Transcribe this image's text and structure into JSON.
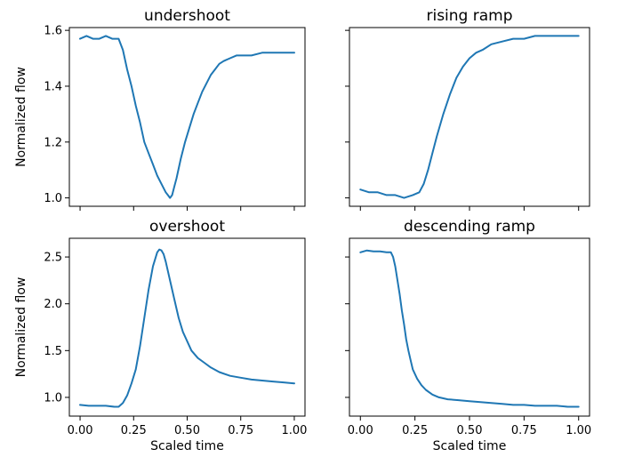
{
  "figure": {
    "line_color": "#1f77b4"
  },
  "chart_data": [
    {
      "type": "line",
      "title": "undershoot",
      "xlabel": "",
      "ylabel": "Normalized flow",
      "xlim": [
        -0.05,
        1.05
      ],
      "ylim": [
        0.97,
        1.61
      ],
      "xticks": [
        0.0,
        0.25,
        0.5,
        0.75,
        1.0
      ],
      "xtick_labels": [
        "",
        "",
        "",
        "",
        ""
      ],
      "yticks": [
        1.0,
        1.2,
        1.4,
        1.6
      ],
      "ytick_labels": [
        "1.0",
        "1.2",
        "1.4",
        "1.6"
      ],
      "series": [
        {
          "x": [
            0.0,
            0.03,
            0.06,
            0.09,
            0.12,
            0.15,
            0.18,
            0.2,
            0.22,
            0.24,
            0.26,
            0.28,
            0.3,
            0.32,
            0.34,
            0.36,
            0.38,
            0.4,
            0.41,
            0.42,
            0.43,
            0.44,
            0.45,
            0.47,
            0.49,
            0.51,
            0.53,
            0.55,
            0.57,
            0.59,
            0.61,
            0.63,
            0.65,
            0.67,
            0.7,
            0.73,
            0.76,
            0.8,
            0.85,
            0.9,
            0.95,
            1.0
          ],
          "y": [
            1.57,
            1.58,
            1.57,
            1.57,
            1.58,
            1.57,
            1.57,
            1.53,
            1.46,
            1.4,
            1.33,
            1.27,
            1.2,
            1.16,
            1.12,
            1.08,
            1.05,
            1.02,
            1.01,
            1.0,
            1.01,
            1.04,
            1.07,
            1.14,
            1.2,
            1.25,
            1.3,
            1.34,
            1.38,
            1.41,
            1.44,
            1.46,
            1.48,
            1.49,
            1.5,
            1.51,
            1.51,
            1.51,
            1.52,
            1.52,
            1.52,
            1.52
          ]
        }
      ]
    },
    {
      "type": "line",
      "title": "rising ramp",
      "xlabel": "",
      "ylabel": "",
      "xlim": [
        -0.05,
        1.05
      ],
      "ylim": [
        0.97,
        1.61
      ],
      "xticks": [
        0.0,
        0.25,
        0.5,
        0.75,
        1.0
      ],
      "xtick_labels": [
        "",
        "",
        "",
        "",
        ""
      ],
      "yticks": [
        1.0,
        1.2,
        1.4,
        1.6
      ],
      "ytick_labels": [
        "",
        "",
        "",
        ""
      ],
      "series": [
        {
          "x": [
            0.0,
            0.04,
            0.08,
            0.12,
            0.16,
            0.2,
            0.24,
            0.27,
            0.29,
            0.31,
            0.33,
            0.35,
            0.38,
            0.41,
            0.44,
            0.47,
            0.5,
            0.53,
            0.56,
            0.6,
            0.65,
            0.7,
            0.75,
            0.8,
            0.85,
            0.9,
            0.95,
            1.0
          ],
          "y": [
            1.03,
            1.02,
            1.02,
            1.01,
            1.01,
            1.0,
            1.01,
            1.02,
            1.05,
            1.1,
            1.16,
            1.22,
            1.3,
            1.37,
            1.43,
            1.47,
            1.5,
            1.52,
            1.53,
            1.55,
            1.56,
            1.57,
            1.57,
            1.58,
            1.58,
            1.58,
            1.58,
            1.58
          ]
        }
      ]
    },
    {
      "type": "line",
      "title": "overshoot",
      "xlabel": "Scaled time",
      "ylabel": "Normalized flow",
      "xlim": [
        -0.05,
        1.05
      ],
      "ylim": [
        0.8,
        2.7
      ],
      "xticks": [
        0.0,
        0.25,
        0.5,
        0.75,
        1.0
      ],
      "xtick_labels": [
        "0.00",
        "0.25",
        "0.50",
        "0.75",
        "1.00"
      ],
      "yticks": [
        1.0,
        1.5,
        2.0,
        2.5
      ],
      "ytick_labels": [
        "1.0",
        "1.5",
        "2.0",
        "2.5"
      ],
      "series": [
        {
          "x": [
            0.0,
            0.04,
            0.08,
            0.12,
            0.16,
            0.18,
            0.2,
            0.22,
            0.24,
            0.26,
            0.28,
            0.3,
            0.32,
            0.34,
            0.36,
            0.37,
            0.38,
            0.39,
            0.4,
            0.42,
            0.44,
            0.46,
            0.48,
            0.5,
            0.52,
            0.55,
            0.58,
            0.61,
            0.65,
            0.7,
            0.75,
            0.8,
            0.85,
            0.9,
            0.95,
            1.0
          ],
          "y": [
            0.92,
            0.91,
            0.91,
            0.91,
            0.9,
            0.9,
            0.94,
            1.02,
            1.15,
            1.3,
            1.55,
            1.85,
            2.15,
            2.4,
            2.55,
            2.58,
            2.57,
            2.53,
            2.45,
            2.25,
            2.05,
            1.85,
            1.7,
            1.6,
            1.5,
            1.42,
            1.37,
            1.32,
            1.27,
            1.23,
            1.21,
            1.19,
            1.18,
            1.17,
            1.16,
            1.15
          ]
        }
      ]
    },
    {
      "type": "line",
      "title": "descending ramp",
      "xlabel": "Scaled time",
      "ylabel": "",
      "xlim": [
        -0.05,
        1.05
      ],
      "ylim": [
        0.8,
        2.7
      ],
      "xticks": [
        0.0,
        0.25,
        0.5,
        0.75,
        1.0
      ],
      "xtick_labels": [
        "0.00",
        "0.25",
        "0.50",
        "0.75",
        "1.00"
      ],
      "yticks": [
        1.0,
        1.5,
        2.0,
        2.5
      ],
      "ytick_labels": [
        "",
        "",
        "",
        ""
      ],
      "series": [
        {
          "x": [
            0.0,
            0.03,
            0.06,
            0.09,
            0.12,
            0.14,
            0.15,
            0.16,
            0.17,
            0.18,
            0.19,
            0.2,
            0.21,
            0.22,
            0.23,
            0.24,
            0.26,
            0.28,
            0.3,
            0.33,
            0.36,
            0.4,
            0.45,
            0.5,
            0.55,
            0.6,
            0.65,
            0.7,
            0.75,
            0.8,
            0.85,
            0.9,
            0.95,
            1.0
          ],
          "y": [
            2.55,
            2.57,
            2.56,
            2.56,
            2.55,
            2.55,
            2.5,
            2.4,
            2.25,
            2.1,
            1.93,
            1.78,
            1.62,
            1.5,
            1.4,
            1.3,
            1.2,
            1.13,
            1.08,
            1.03,
            1.0,
            0.98,
            0.97,
            0.96,
            0.95,
            0.94,
            0.93,
            0.92,
            0.92,
            0.91,
            0.91,
            0.91,
            0.9,
            0.9
          ]
        }
      ]
    }
  ]
}
